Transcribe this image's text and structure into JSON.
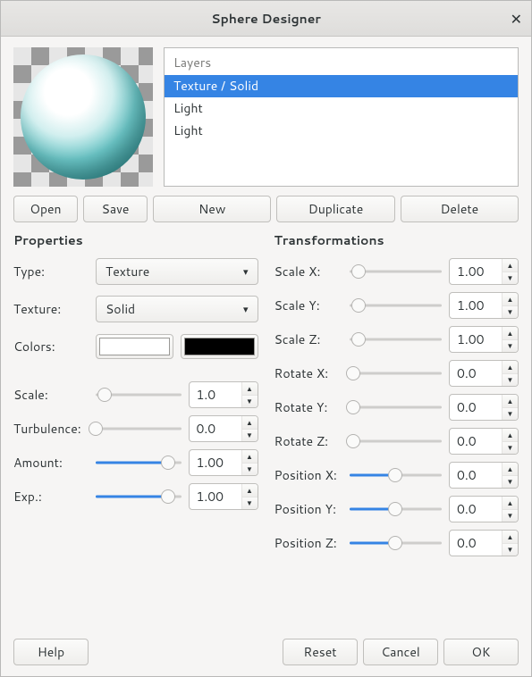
{
  "window": {
    "title": "Sphere Designer"
  },
  "layers": {
    "header": "Layers",
    "items": [
      {
        "label": "Texture / Solid",
        "selected": true
      },
      {
        "label": "Light",
        "selected": false
      },
      {
        "label": "Light",
        "selected": false
      }
    ]
  },
  "preview": {
    "checker_light": "#e6e6e6",
    "checker_dark": "#9a9a9a",
    "sphere_highlight": "#ffffff",
    "sphere_mid": "#6bc6c7",
    "sphere_shadow": "#166264"
  },
  "buttons": {
    "open": "Open",
    "save": "Save",
    "new": "New",
    "duplicate": "Duplicate",
    "delete": "Delete",
    "help": "Help",
    "reset": "Reset",
    "cancel": "Cancel",
    "ok": "OK"
  },
  "properties": {
    "title": "Properties",
    "type_label": "Type:",
    "type_value": "Texture",
    "texture_label": "Texture:",
    "texture_value": "Solid",
    "colors_label": "Colors:",
    "color1": "#ffffff",
    "color2": "#000000",
    "sliders": [
      {
        "label": "Scale:",
        "value": "1.0",
        "thumb_pct": 10,
        "fill": false
      },
      {
        "label": "Turbulence:",
        "value": "0.0",
        "thumb_pct": 0,
        "fill": false
      },
      {
        "label": "Amount:",
        "value": "1.00",
        "thumb_pct": 85,
        "fill": true
      },
      {
        "label": "Exp.:",
        "value": "1.00",
        "thumb_pct": 85,
        "fill": true
      }
    ]
  },
  "transformations": {
    "title": "Transformations",
    "rows": [
      {
        "label": "Scale X:",
        "value": "1.00",
        "thumb_pct": 10,
        "fill": false
      },
      {
        "label": "Scale Y:",
        "value": "1.00",
        "thumb_pct": 10,
        "fill": false
      },
      {
        "label": "Scale Z:",
        "value": "1.00",
        "thumb_pct": 10,
        "fill": false
      },
      {
        "label": "Rotate X:",
        "value": "0.0",
        "thumb_pct": 4,
        "fill": false
      },
      {
        "label": "Rotate Y:",
        "value": "0.0",
        "thumb_pct": 4,
        "fill": false
      },
      {
        "label": "Rotate Z:",
        "value": "0.0",
        "thumb_pct": 4,
        "fill": false
      },
      {
        "label": "Position X:",
        "value": "0.0",
        "thumb_pct": 50,
        "fill": true
      },
      {
        "label": "Position Y:",
        "value": "0.0",
        "thumb_pct": 50,
        "fill": true
      },
      {
        "label": "Position Z:",
        "value": "0.0",
        "thumb_pct": 50,
        "fill": true
      }
    ]
  },
  "accent_color": "#3584e4"
}
